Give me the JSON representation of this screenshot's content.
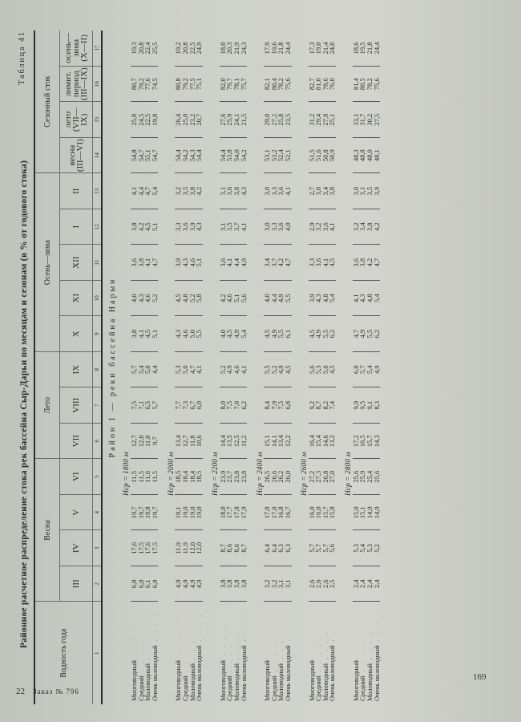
{
  "table_number": "Таблица 41",
  "title": "Районное расчетное распределение стока рек бассейна Сыр-Дарьи по месяцам и сезонам (в % от годового стока)",
  "header": {
    "col1": "Водность года",
    "groups": [
      "Весна",
      "Лето",
      "Осень—зима",
      "Сезонный сток"
    ],
    "months": [
      "III",
      "IV",
      "V",
      "VI",
      "VII",
      "VIII",
      "IX",
      "X",
      "XI",
      "XII",
      "I",
      "II"
    ],
    "seasons": [
      {
        "label": "весна",
        "range": "(III—VI)"
      },
      {
        "label": "лето",
        "range": "(VII—IX)"
      },
      {
        "label": "лимит. период",
        "range": "(III—IX)"
      },
      {
        "label": "осень—зима",
        "range": "(X—II)"
      }
    ],
    "numbers": [
      "1",
      "2",
      "3",
      "4",
      "5",
      "6",
      "7",
      "8",
      "9",
      "10",
      "11",
      "12",
      "13",
      "14",
      "15",
      "16",
      "17"
    ]
  },
  "section_title": "Район I — реки бассейна Нарын",
  "row_labels": [
    "Многоводный",
    "Средний",
    "Маловодный",
    "Очень маловодный"
  ],
  "groups": [
    {
      "h": "Hср = 1800 м",
      "rows": [
        [
          "6,0",
          "17,6",
          "19,7",
          "11,5",
          "12,7",
          "7,5",
          "5,7",
          "3,8",
          "4,0",
          "3,6",
          "3,8",
          "4,1",
          "54,8",
          "25,8",
          "80,7",
          "19,3"
        ],
        [
          "6,0",
          "17,5",
          "19,7",
          "11,5",
          "12,0",
          "7,1",
          "5,4",
          "4,1",
          "4,3",
          "3,8",
          "4,2",
          "4,4",
          "54,7",
          "24,5",
          "79,2",
          "20,8"
        ],
        [
          "6,1",
          "17,6",
          "19,8",
          "11,6",
          "11,0",
          "6,5",
          "5,0",
          "4,5",
          "4,6",
          "4,1",
          "4,5",
          "4,7",
          "55,1",
          "22,5",
          "77,6",
          "22,4"
        ],
        [
          "6,0",
          "17,5",
          "19,7",
          "11,5",
          "9,7",
          "5,7",
          "4,4",
          "5,1",
          "5,2",
          "4,7",
          "5,1",
          "5,4",
          "54,7",
          "19,8",
          "74,5",
          "25,5"
        ]
      ]
    },
    {
      "h": "Hср = 2000 м",
      "rows": [
        [
          "4,9",
          "11,9",
          "19,1",
          "18,5",
          "13,4",
          "7,7",
          "5,3",
          "4,3",
          "4,5",
          "3,9",
          "3,3",
          "3,2",
          "54,4",
          "26,4",
          "80,8",
          "19,2"
        ],
        [
          "4,9",
          "11,9",
          "19,0",
          "18,4",
          "12,7",
          "7,3",
          "5,0",
          "4,6",
          "4,8",
          "4,3",
          "3,6",
          "3,5",
          "54,2",
          "25,0",
          "79,2",
          "20,8"
        ],
        [
          "4,9",
          "12,0",
          "19,0",
          "18,4",
          "11,8",
          "6,7",
          "4,7",
          "5,0",
          "5,2",
          "4,6",
          "3,9",
          "3,8",
          "54,3",
          "23,2",
          "77,5",
          "22,5"
        ],
        [
          "4,9",
          "12,0",
          "19,0",
          "18,5",
          "10,6",
          "6,0",
          "4,1",
          "5,5",
          "5,8",
          "5,1",
          "4,3",
          "4,2",
          "54,4",
          "20,7",
          "75,1",
          "24,9"
        ]
      ]
    },
    {
      "h": "Hср = 2200 м",
      "rows": [
        [
          "3,8",
          "8,7",
          "18,0",
          "23,9",
          "14,4",
          "8,0",
          "5,2",
          "4,0",
          "4,2",
          "3,6",
          "3,1",
          "3,1",
          "54,4",
          "27,6",
          "82,0",
          "18,0"
        ],
        [
          "3,8",
          "8,6",
          "17,7",
          "23,7",
          "13,5",
          "7,5",
          "4,9",
          "4,5",
          "4,6",
          "4,1",
          "3,5",
          "3,6",
          "53,8",
          "25,9",
          "79,7",
          "20,3"
        ],
        [
          "3,8",
          "8,6",
          "17,8",
          "23,8",
          "12,5",
          "7,0",
          "4,6",
          "4,9",
          "5,1",
          "4,4",
          "3,7",
          "3,8",
          "54,0",
          "24,1",
          "78,1",
          "21,9"
        ],
        [
          "3,8",
          "8,7",
          "17,9",
          "23,8",
          "11,2",
          "6,2",
          "4,1",
          "5,4",
          "5,6",
          "4,9",
          "4,1",
          "4,3",
          "54,2",
          "21,5",
          "75,7",
          "24,3"
        ]
      ]
    },
    {
      "h": "Hср = 2400 м",
      "rows": [
        [
          "3,2",
          "6,4",
          "17,0",
          "26,5",
          "15,1",
          "8,4",
          "5,5",
          "4,5",
          "4,0",
          "3,4",
          "3,0",
          "3,0",
          "53,1",
          "29,0",
          "82,1",
          "17,9"
        ],
        [
          "3,2",
          "6,4",
          "17,0",
          "26,6",
          "14,1",
          "7,9",
          "5,2",
          "4,9",
          "4,4",
          "3,7",
          "3,3",
          "3,3",
          "53,2",
          "27,2",
          "80,4",
          "19,6"
        ],
        [
          "3,1",
          "6,3",
          "16,8",
          "26,2",
          "13,4",
          "7,5",
          "4,9",
          "5,5",
          "4,9",
          "4,2",
          "3,6",
          "3,6",
          "52,4",
          "25,8",
          "78,2",
          "21,8"
        ],
        [
          "3,1",
          "6,3",
          "16,7",
          "26,0",
          "12,2",
          "6,8",
          "4,5",
          "6,1",
          "5,5",
          "4,7",
          "4,0",
          "4,1",
          "52,1",
          "23,5",
          "75,6",
          "24,4"
        ]
      ]
    },
    {
      "h": "Hср = 2600 м",
      "rows": [
        [
          "2,6",
          "5,7",
          "16,0",
          "27,2",
          "16,4",
          "9,2",
          "5,6",
          "4,5",
          "3,9",
          "3,3",
          "2,9",
          "2,7",
          "51,5",
          "31,2",
          "82,7",
          "17,3"
        ],
        [
          "2,6",
          "5,7",
          "16,0",
          "27,3",
          "15,4",
          "8,7",
          "5,3",
          "4,9",
          "4,3",
          "3,6",
          "3,2",
          "3,0",
          "51,6",
          "29,4",
          "81,0",
          "19,0"
        ],
        [
          "2,6",
          "5,7",
          "15,7",
          "26,8",
          "14,6",
          "8,2",
          "5,0",
          "5,5",
          "4,8",
          "4,1",
          "3,6",
          "3,4",
          "50,8",
          "27,8",
          "78,6",
          "21,4"
        ],
        [
          "2,5",
          "5,6",
          "15,8",
          "27,0",
          "13,2",
          "7,4",
          "4,5",
          "6,2",
          "5,4",
          "4,5",
          "4,1",
          "3,8",
          "50,9",
          "25,1",
          "76,0",
          "24,0"
        ]
      ]
    },
    {
      "h": "Hср = 2800 м",
      "rows": [
        [
          "2,4",
          "5,3",
          "15,0",
          "25,6",
          "17,2",
          "9,9",
          "6,0",
          "4,7",
          "4,1",
          "3,6",
          "3,2",
          "3,0",
          "48,3",
          "33,1",
          "81,4",
          "18,6"
        ],
        [
          "2,4",
          "5,4",
          "15,1",
          "25,9",
          "16,5",
          "9,5",
          "5,7",
          "4,9",
          "4,3",
          "3,8",
          "3,4",
          "3,1",
          "48,8",
          "31,7",
          "80,5",
          "19,5"
        ],
        [
          "2,4",
          "5,3",
          "14,9",
          "25,4",
          "15,7",
          "9,1",
          "5,4",
          "5,5",
          "4,8",
          "4,2",
          "3,8",
          "3,5",
          "48,0",
          "30,2",
          "78,2",
          "21,8"
        ],
        [
          "2,4",
          "5,2",
          "14,9",
          "25,6",
          "14,3",
          "8,3",
          "4,9",
          "6,2",
          "5,4",
          "4,7",
          "4,2",
          "3,9",
          "48,1",
          "27,5",
          "75,6",
          "24,4"
        ]
      ]
    }
  ],
  "footer": {
    "left_page": "22",
    "order": "Заказ № 796",
    "page_number": "169"
  }
}
